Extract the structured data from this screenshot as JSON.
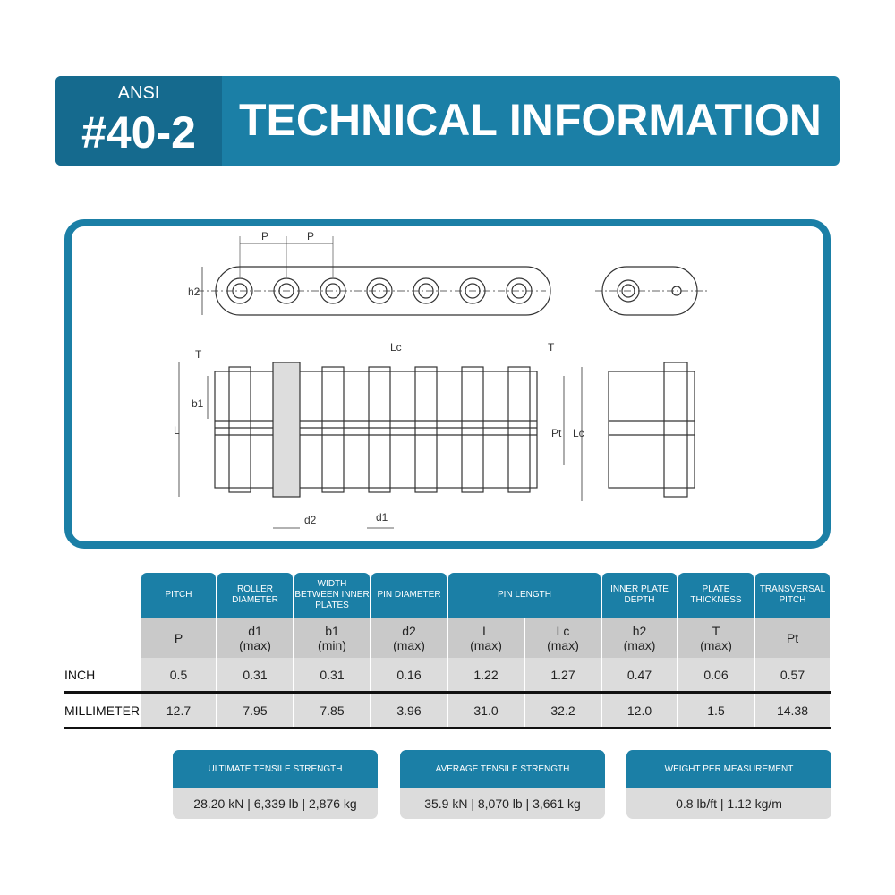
{
  "header": {
    "series": "ANSI",
    "model": "#40-2",
    "title": "TECHNICAL INFORMATION"
  },
  "diagram_labels": {
    "p1": "P",
    "p2": "P",
    "h2": "h2",
    "t1": "T",
    "b1": "b1",
    "l": "L",
    "lc1": "Lc",
    "t2": "T",
    "pt": "Pt",
    "lc2": "Lc",
    "d2": "d2",
    "d1": "d1"
  },
  "table": {
    "headers": [
      "PITCH",
      "ROLLER DIAMETER",
      "WIDTH BETWEEN INNER PLATES",
      "PIN DIAMETER",
      "PIN LENGTH",
      "INNER PLATE DEPTH",
      "PLATE THICKNESS",
      "TRANSVERSAL PITCH"
    ],
    "symbols": [
      "P",
      "d1\n(max)",
      "b1\n(min)",
      "d2\n(max)",
      "L\n(max)",
      "Lc\n(max)",
      "h2\n(max)",
      "T\n(max)",
      "Pt"
    ],
    "rows": [
      {
        "label": "INCH",
        "values": [
          "0.5",
          "0.31",
          "0.31",
          "0.16",
          "1.22",
          "1.27",
          "0.47",
          "0.06",
          "0.57"
        ]
      },
      {
        "label": "MILLIMETER",
        "values": [
          "12.7",
          "7.95",
          "7.85",
          "3.96",
          "31.0",
          "32.2",
          "12.0",
          "1.5",
          "14.38"
        ]
      }
    ]
  },
  "specs": [
    {
      "title": "ULTIMATE TENSILE STRENGTH",
      "value": "28.20 kN | 6,339 lb | 2,876 kg"
    },
    {
      "title": "AVERAGE TENSILE STRENGTH",
      "value": "35.9 kN | 8,070 lb | 3,661 kg"
    },
    {
      "title": "WEIGHT PER MEASUREMENT",
      "value": "0.8 lb/ft | 1.12 kg/m"
    }
  ],
  "colors": {
    "primary": "#1b7fa6",
    "dark": "#156a8e",
    "grey": "#c9c9c9"
  }
}
